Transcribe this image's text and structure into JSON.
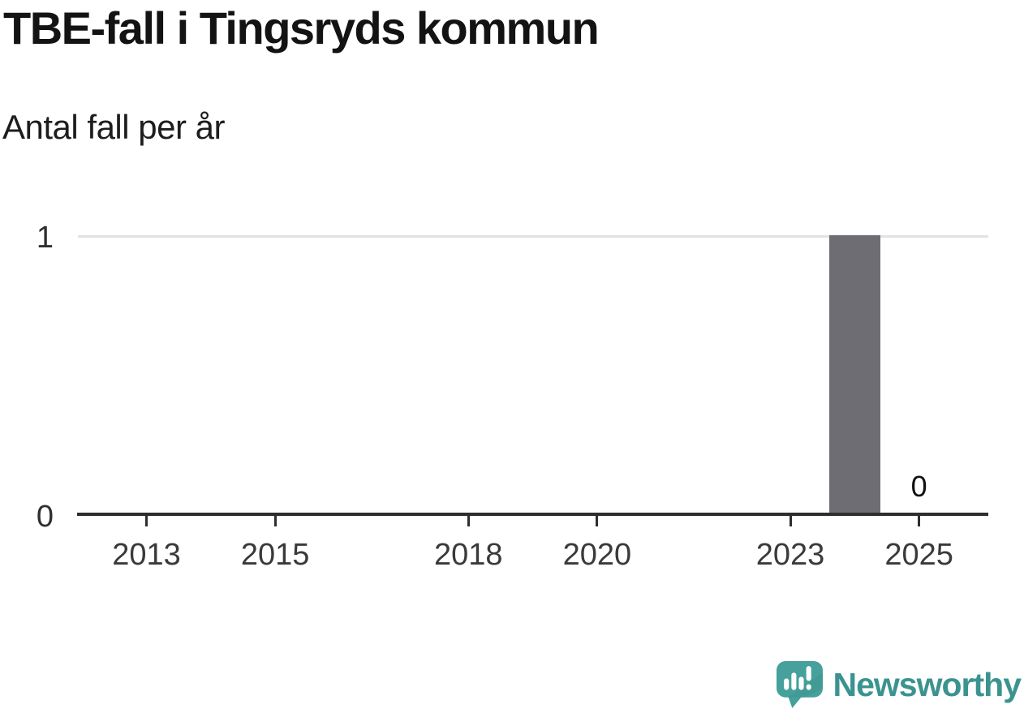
{
  "header": {
    "title": "TBE-fall i Tingsryds kommun",
    "subtitle": "Antal fall per år"
  },
  "chart_data": {
    "type": "bar",
    "title": "TBE-fall i Tingsryds kommun",
    "subtitle": "Antal fall per år",
    "x": [
      2012,
      2013,
      2014,
      2015,
      2016,
      2017,
      2018,
      2019,
      2020,
      2021,
      2022,
      2023,
      2024,
      2025
    ],
    "values": [
      0,
      0,
      0,
      0,
      0,
      0,
      0,
      0,
      0,
      0,
      0,
      0,
      1,
      0
    ],
    "x_ticks": [
      2013,
      2015,
      2018,
      2020,
      2023,
      2025
    ],
    "y_ticks": [
      0,
      1
    ],
    "ylim": [
      0,
      1
    ],
    "value_labels": [
      {
        "x": 2025,
        "text": "0"
      }
    ],
    "grid": "horizontal-at-1-only",
    "legend": "none",
    "colors": {
      "bar": "#6e6d74",
      "gridline": "#e2e2e2",
      "axis": "#2e2e2e",
      "x_tick_label": "#3a3a3a",
      "y_tick_label": "#2f2f2f",
      "value_label": "#111111"
    }
  },
  "footer": {
    "brand": "Newsworthy",
    "brand_color": "#3b938f",
    "icon": "newsworthy-speech-bubble-bar-chart-icon",
    "icon_color": "#46a09b",
    "icon_shade_color": "#3e938e"
  }
}
